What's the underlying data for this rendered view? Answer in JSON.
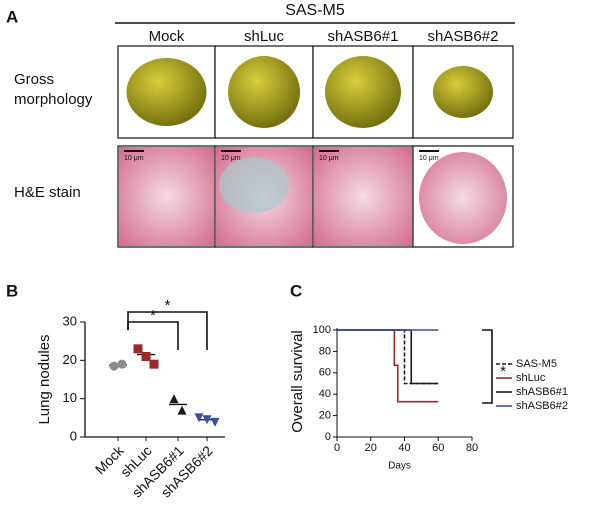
{
  "panel_a": {
    "label": "A",
    "header": "SAS-M5",
    "columns": [
      "Mock",
      "shLuc",
      "shASB6#1",
      "shASB6#2"
    ],
    "rows": [
      "Gross morphology",
      "H&E stain"
    ],
    "scale_bar": "10 μm"
  },
  "chart_data": [
    {
      "type": "dot",
      "label": "B",
      "ylabel": "Lung nodules",
      "categories": [
        "Mock",
        "shLuc",
        "shASB6#1",
        "shASB6#2"
      ],
      "groups": [
        {
          "values": [
            18.5,
            19
          ],
          "mean": 18.7,
          "color": "#8c8c8c",
          "marker": "circle"
        },
        {
          "values": [
            23,
            21,
            19
          ],
          "mean": 21.5,
          "color": "#9b2a2a",
          "marker": "square"
        },
        {
          "values": [
            10,
            7
          ],
          "mean": 8.5,
          "color": "#1a1a1a",
          "marker": "triangle"
        },
        {
          "values": [
            5,
            4.5,
            3.8
          ],
          "mean": 4.5,
          "color": "#3b4fa0",
          "marker": "triangle-down"
        }
      ],
      "ylim": [
        0,
        30
      ],
      "yticks": [
        0,
        10,
        20,
        30
      ],
      "brackets": [
        {
          "from": 1,
          "to": 2,
          "label": "*"
        },
        {
          "from": 1,
          "to": 3,
          "label": "*"
        }
      ]
    },
    {
      "type": "step",
      "label": "C",
      "xlabel": "Days",
      "ylabel": "Overall survival",
      "series": [
        {
          "name": "SAS-M5",
          "color": "#1a1a1a",
          "dash": true,
          "x": [
            0,
            40,
            40,
            60
          ],
          "y": [
            100,
            100,
            50,
            50
          ]
        },
        {
          "name": "shLuc",
          "color": "#9b2a2a",
          "dash": false,
          "x": [
            0,
            34,
            34,
            36,
            36,
            60
          ],
          "y": [
            100,
            100,
            67,
            67,
            33,
            33
          ]
        },
        {
          "name": "shASB6#1",
          "color": "#1a1a1a",
          "dash": false,
          "x": [
            0,
            44,
            44,
            60
          ],
          "y": [
            100,
            100,
            50,
            50
          ]
        },
        {
          "name": "shASB6#2",
          "color": "#3b4fa0",
          "dash": false,
          "x": [
            0,
            60
          ],
          "y": [
            100,
            100
          ]
        }
      ],
      "xlim": [
        0,
        80
      ],
      "xticks": [
        0,
        20,
        40,
        60,
        80
      ],
      "ylim": [
        0,
        100
      ],
      "yticks": [
        0,
        20,
        40,
        60,
        80,
        100
      ],
      "annotation": "*"
    }
  ]
}
